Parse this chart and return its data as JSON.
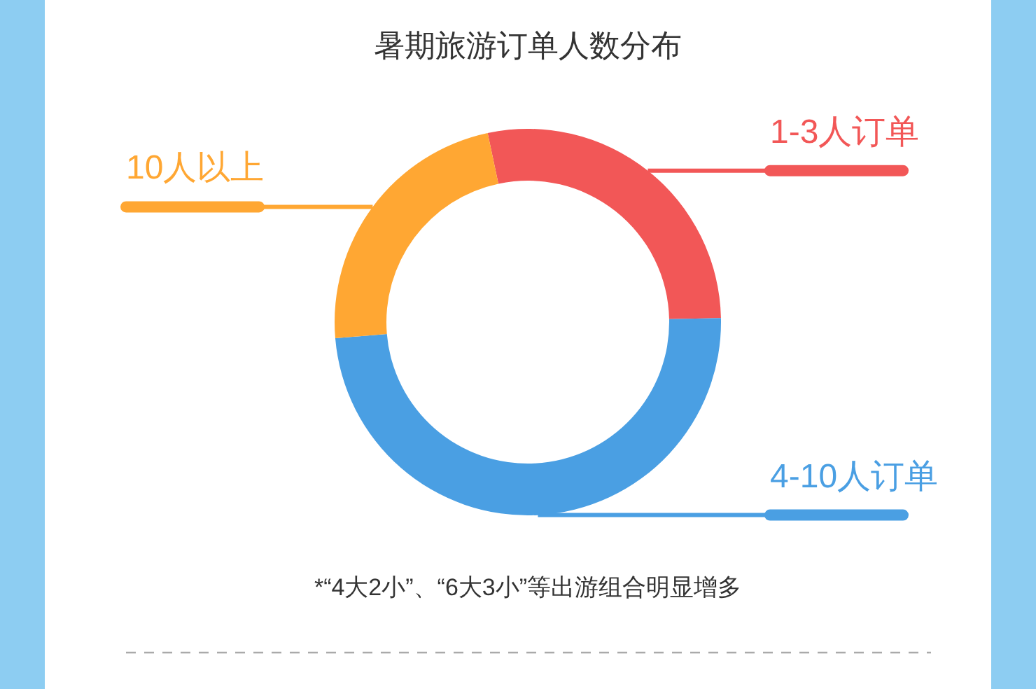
{
  "chart_data": {
    "type": "donut",
    "title": "暑期旅游订单人数分布",
    "categories": [
      "1-3人订单",
      "4-10人订单",
      "10人以上"
    ],
    "values": [
      28,
      49,
      23
    ],
    "colors": [
      "#f25757",
      "#4a9fe3",
      "#ffa733"
    ],
    "legend": false,
    "annotations": [
      "*“4大2小”、“6大3小”等出游组合明显增多"
    ]
  }
}
